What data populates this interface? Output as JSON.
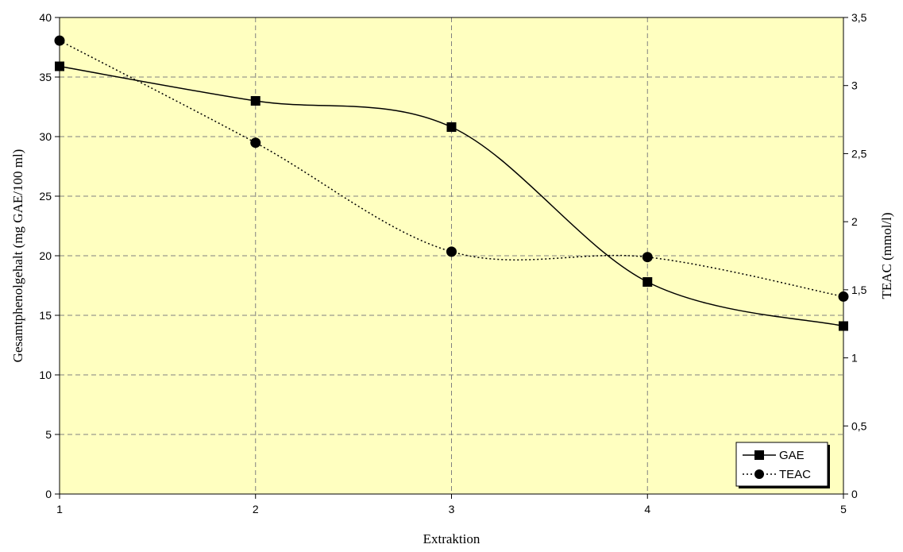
{
  "chart_data": {
    "type": "line",
    "x": [
      1,
      2,
      3,
      4,
      5
    ],
    "xlabel": "Extraktion",
    "ylabel": "Gesamtphenolgehalt (mg GAE/100 ml)",
    "y2label": "TEAC (mmol/l)",
    "xlim": [
      1,
      5
    ],
    "ylim": [
      0,
      40
    ],
    "y2lim": [
      0,
      3.5
    ],
    "x_ticks": [
      "1",
      "2",
      "3",
      "4",
      "5"
    ],
    "y_ticks": [
      "0",
      "5",
      "10",
      "15",
      "20",
      "25",
      "30",
      "35",
      "40"
    ],
    "y2_ticks": [
      "0",
      "0,5",
      "1",
      "1,5",
      "2",
      "2,5",
      "3",
      "3,5"
    ],
    "grid": true,
    "smoothed": true,
    "legend_position": "bottom-right",
    "plot_background": "#ffffc0",
    "series": [
      {
        "name": "GAE",
        "axis": "left",
        "values": [
          35.9,
          33.0,
          30.8,
          17.8,
          14.1
        ],
        "marker": "square",
        "line": "solid",
        "color": "#000000"
      },
      {
        "name": "TEAC",
        "axis": "right",
        "values": [
          3.33,
          2.58,
          1.78,
          1.74,
          1.45
        ],
        "marker": "circle",
        "line": "dotted",
        "color": "#000000"
      }
    ]
  }
}
